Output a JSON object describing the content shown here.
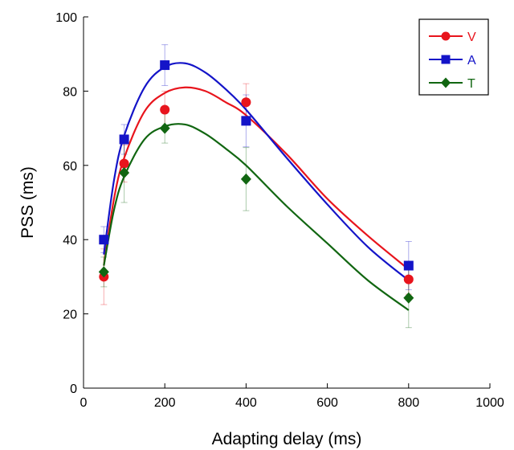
{
  "chart_data": {
    "type": "scatter",
    "title": "",
    "xlabel": "Adapting delay (ms)",
    "ylabel": "PSS (ms)",
    "xlim": [
      0,
      1000
    ],
    "ylim": [
      0,
      100
    ],
    "x_ticks": [
      0,
      200,
      400,
      600,
      800,
      1000
    ],
    "y_ticks": [
      0,
      20,
      40,
      60,
      80,
      100
    ],
    "grid": false,
    "legend_position": "top-right",
    "x": [
      50,
      100,
      200,
      400,
      800
    ],
    "series": [
      {
        "name": "V",
        "color": "#e8141c",
        "marker": "circle",
        "values": [
          30,
          60.5,
          75,
          77,
          29.3
        ],
        "error": [
          7.5,
          5,
          5,
          5,
          4
        ],
        "fit": [
          [
            50,
            33
          ],
          [
            75,
            51
          ],
          [
            100,
            62
          ],
          [
            150,
            74.5
          ],
          [
            200,
            79.5
          ],
          [
            250,
            81
          ],
          [
            300,
            80
          ],
          [
            350,
            77
          ],
          [
            400,
            73.5
          ],
          [
            500,
            63
          ],
          [
            600,
            51
          ],
          [
            700,
            41
          ],
          [
            800,
            32
          ]
        ]
      },
      {
        "name": "A",
        "color": "#1414c8",
        "marker": "square",
        "values": [
          40,
          67,
          87,
          72,
          33
        ],
        "error": [
          3.5,
          4,
          5.5,
          7,
          6.5
        ],
        "fit": [
          [
            50,
            36
          ],
          [
            75,
            56
          ],
          [
            100,
            68
          ],
          [
            150,
            81
          ],
          [
            200,
            86.5
          ],
          [
            250,
            87.5
          ],
          [
            300,
            85
          ],
          [
            350,
            80.5
          ],
          [
            400,
            75
          ],
          [
            500,
            62
          ],
          [
            600,
            49.5
          ],
          [
            700,
            38
          ],
          [
            800,
            29
          ]
        ]
      },
      {
        "name": "T",
        "color": "#116611",
        "marker": "diamond",
        "values": [
          31.3,
          58,
          70,
          56.3,
          24.3
        ],
        "error": [
          4,
          8,
          4,
          8.5,
          8
        ],
        "fit": [
          [
            50,
            33
          ],
          [
            75,
            48
          ],
          [
            100,
            57
          ],
          [
            150,
            67
          ],
          [
            200,
            70.5
          ],
          [
            250,
            71
          ],
          [
            300,
            68.5
          ],
          [
            350,
            64.5
          ],
          [
            400,
            60
          ],
          [
            500,
            49
          ],
          [
            600,
            39
          ],
          [
            700,
            29
          ],
          [
            800,
            21
          ]
        ]
      }
    ]
  }
}
